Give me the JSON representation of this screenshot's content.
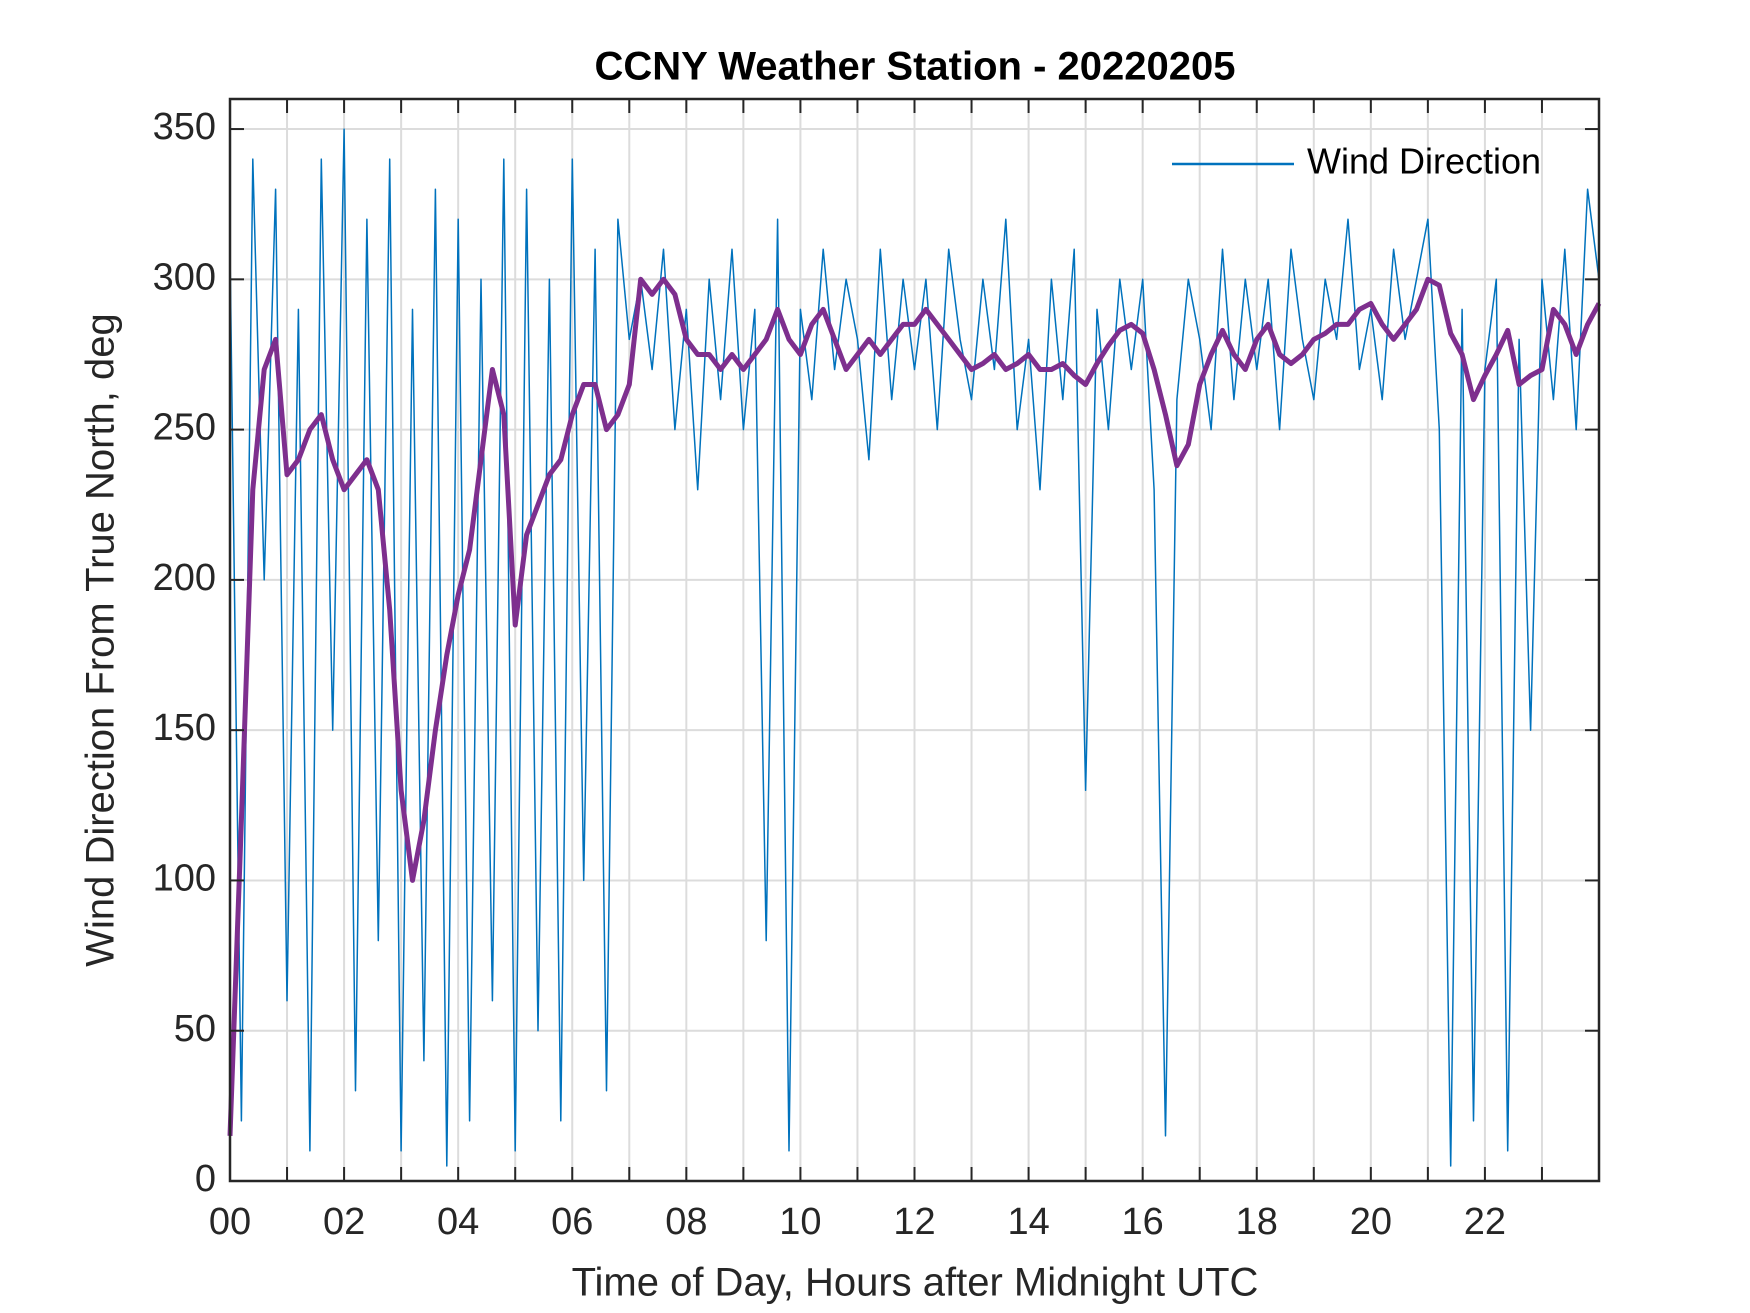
{
  "chart_data": {
    "type": "line",
    "title": "CCNY Weather Station - 20220205",
    "xlabel": "Time of Day, Hours after Midnight UTC",
    "ylabel": "Wind Direction From True North, deg",
    "x": [
      0,
      0.2,
      0.4,
      0.6,
      0.8,
      1,
      1.2,
      1.4,
      1.6,
      1.8,
      2,
      2.2,
      2.4,
      2.6,
      2.8,
      3,
      3.2,
      3.4,
      3.6,
      3.8,
      4,
      4.2,
      4.4,
      4.6,
      4.8,
      5,
      5.2,
      5.4,
      5.6,
      5.8,
      6,
      6.2,
      6.4,
      6.6,
      6.8,
      7,
      7.2,
      7.4,
      7.6,
      7.8,
      8,
      8.2,
      8.4,
      8.6,
      8.8,
      9,
      9.2,
      9.4,
      9.6,
      9.8,
      10,
      10.2,
      10.4,
      10.6,
      10.8,
      11,
      11.2,
      11.4,
      11.6,
      11.8,
      12,
      12.2,
      12.4,
      12.6,
      12.8,
      13,
      13.2,
      13.4,
      13.6,
      13.8,
      14,
      14.2,
      14.4,
      14.6,
      14.8,
      15,
      15.2,
      15.4,
      15.6,
      15.8,
      16,
      16.2,
      16.4,
      16.6,
      16.8,
      17,
      17.2,
      17.4,
      17.6,
      17.8,
      18,
      18.2,
      18.4,
      18.6,
      18.8,
      19,
      19.2,
      19.4,
      19.6,
      19.8,
      20,
      20.2,
      20.4,
      20.6,
      20.8,
      21,
      21.2,
      21.4,
      21.6,
      21.8,
      22,
      22.2,
      22.4,
      22.6,
      22.8,
      23,
      23.2,
      23.4,
      23.6,
      23.8,
      24
    ],
    "series": [
      {
        "name": "Wind Direction",
        "color": "#0072bd",
        "values": [
          310,
          20,
          340,
          200,
          330,
          60,
          290,
          10,
          340,
          150,
          350,
          30,
          320,
          80,
          340,
          10,
          290,
          40,
          330,
          5,
          320,
          20,
          300,
          60,
          340,
          10,
          330,
          50,
          300,
          20,
          340,
          100,
          310,
          30,
          320,
          280,
          300,
          270,
          310,
          250,
          290,
          230,
          300,
          260,
          310,
          250,
          290,
          80,
          320,
          10,
          290,
          260,
          310,
          270,
          300,
          280,
          240,
          310,
          260,
          300,
          270,
          300,
          250,
          310,
          280,
          260,
          300,
          270,
          320,
          250,
          280,
          230,
          300,
          260,
          310,
          130,
          290,
          250,
          300,
          270,
          300,
          230,
          15,
          260,
          300,
          280,
          250,
          310,
          260,
          300,
          270,
          300,
          250,
          310,
          280,
          260,
          300,
          280,
          320,
          270,
          290,
          260,
          310,
          280,
          300,
          320,
          250,
          5,
          290,
          20,
          270,
          300,
          10,
          280,
          150,
          300,
          260,
          310,
          250,
          330,
          300
        ]
      },
      {
        "color": "#7e2f8e",
        "values": [
          15,
          120,
          230,
          270,
          280,
          235,
          240,
          250,
          255,
          240,
          230,
          235,
          240,
          230,
          190,
          130,
          100,
          120,
          150,
          175,
          195,
          210,
          240,
          270,
          255,
          185,
          215,
          225,
          235,
          240,
          255,
          265,
          265,
          250,
          255,
          265,
          300,
          295,
          300,
          295,
          280,
          275,
          275,
          270,
          275,
          270,
          275,
          280,
          290,
          280,
          275,
          285,
          290,
          280,
          270,
          275,
          280,
          275,
          280,
          285,
          285,
          290,
          285,
          280,
          275,
          270,
          272,
          275,
          270,
          272,
          275,
          270,
          270,
          272,
          268,
          265,
          272,
          278,
          283,
          285,
          282,
          270,
          255,
          238,
          245,
          265,
          275,
          283,
          275,
          270,
          280,
          285,
          275,
          272,
          275,
          280,
          282,
          285,
          285,
          290,
          292,
          285,
          280,
          285,
          290,
          300,
          298,
          282,
          275,
          260,
          268,
          275,
          283,
          265,
          268,
          270,
          290,
          285,
          275,
          285,
          292
        ]
      }
    ],
    "xlim": [
      0,
      24
    ],
    "xticks": [
      {
        "value": 0,
        "label": "00"
      },
      {
        "value": 2,
        "label": "02"
      },
      {
        "value": 4,
        "label": "04"
      },
      {
        "value": 6,
        "label": "06"
      },
      {
        "value": 8,
        "label": "08"
      },
      {
        "value": 10,
        "label": "10"
      },
      {
        "value": 12,
        "label": "12"
      },
      {
        "value": 14,
        "label": "14"
      },
      {
        "value": 16,
        "label": "16"
      },
      {
        "value": 18,
        "label": "18"
      },
      {
        "value": 20,
        "label": "20"
      },
      {
        "value": 22,
        "label": "22"
      }
    ],
    "xminor_ticks": [
      1,
      3,
      5,
      7,
      9,
      11,
      13,
      15,
      17,
      19,
      21,
      23
    ],
    "ylim": [
      0,
      360
    ],
    "yticks": [
      0,
      50,
      100,
      150,
      200,
      250,
      300,
      350
    ],
    "grid": true,
    "legend": "upper right"
  }
}
